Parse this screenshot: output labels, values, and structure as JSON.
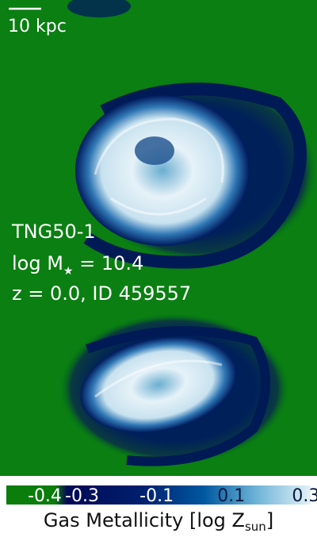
{
  "scale_bar": {
    "label": "10 kpc"
  },
  "info": {
    "simulation": "TNG50-1",
    "mass_parts": [
      "log M",
      "★",
      " = 10.4"
    ],
    "redshift_id": "z = 0.0, ID 459557"
  },
  "colorbar": {
    "xlim": [
      -0.52,
      0.33
    ],
    "xticks": [
      -0.4,
      -0.3,
      -0.1,
      0.1,
      0.3
    ],
    "label_parts": [
      "Gas Metallicity [log Z",
      "sun",
      "]"
    ]
  }
}
